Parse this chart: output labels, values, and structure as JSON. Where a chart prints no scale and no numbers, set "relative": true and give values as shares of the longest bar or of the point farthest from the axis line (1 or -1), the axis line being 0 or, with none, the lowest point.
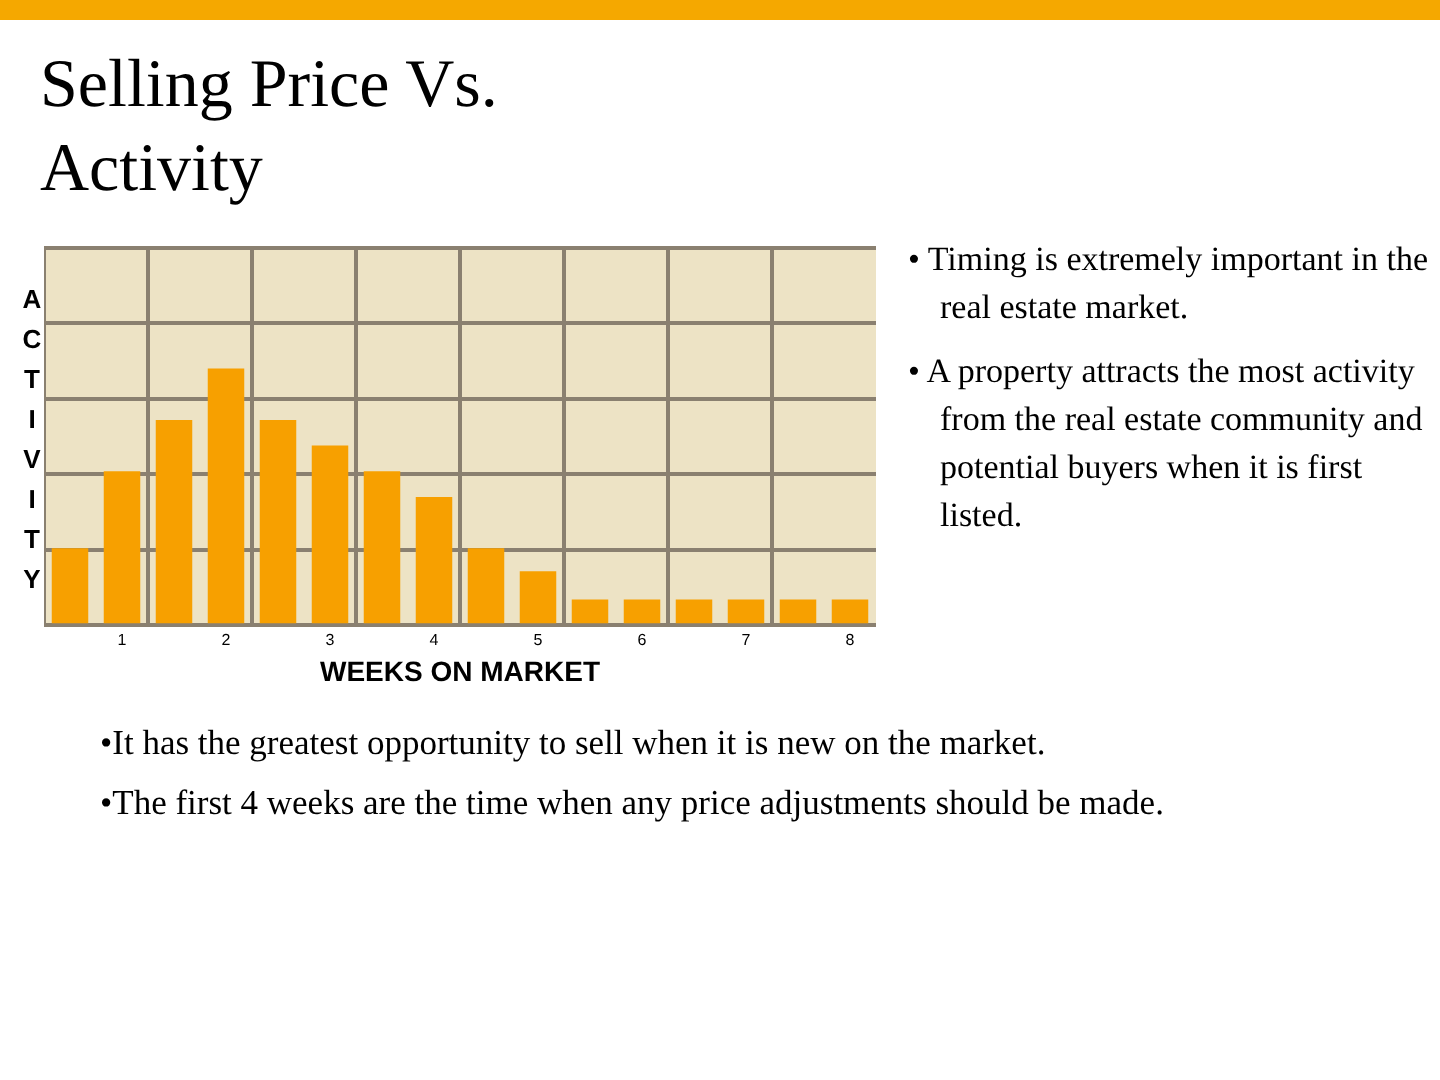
{
  "chart_data": {
    "type": "bar",
    "title": "Selling Price Vs. Activity",
    "xlabel": "WEEKS ON MARKET",
    "ylabel": "ACTIVITY",
    "relative": true,
    "grid": true,
    "color": "#f7a000",
    "categories": [
      null,
      "1",
      null,
      "2",
      null,
      "3",
      null,
      "4",
      null,
      "5",
      null,
      "6",
      null,
      "7",
      null,
      "8"
    ],
    "values": [
      0.3,
      0.6,
      0.8,
      1,
      0.8,
      0.7,
      0.6,
      0.5,
      0.3,
      0.21,
      0.1,
      0.1,
      0.1,
      0.1,
      0.1,
      0.1
    ],
    "annotations": [
      "• Timing is extremely important in the real estate market.",
      "• A property attracts the most activity from the real estate community and potential buyers when it is first listed.",
      "•It has the greatest opportunity to sell when it is new on the market.",
      "•The first 4 weeks are the time when any price adjustments should be made."
    ]
  }
}
